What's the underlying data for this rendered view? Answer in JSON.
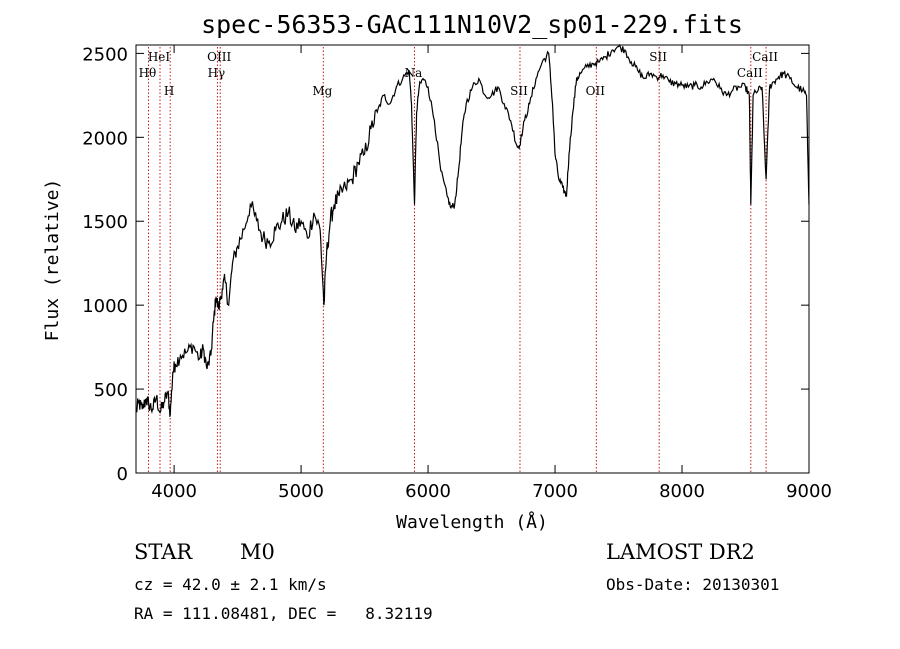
{
  "chart_data": {
    "type": "line",
    "title": "spec-56353-GAC111N10V2_sp01-229.fits",
    "xlabel": "Wavelength (Å)",
    "ylabel": "Flux (relative)",
    "xlim": [
      3700,
      9000
    ],
    "ylim": [
      0,
      2550
    ],
    "xticks": [
      4000,
      5000,
      6000,
      7000,
      8000,
      9000
    ],
    "yticks": [
      0,
      500,
      1000,
      1500,
      2000,
      2500
    ],
    "grid": false,
    "spectral_lines": [
      {
        "name": "HeI",
        "wavelength": 3889,
        "label_row": 1
      },
      {
        "name": "Hθ",
        "wavelength": 3798,
        "label_row": 2
      },
      {
        "name": "H",
        "wavelength": 3969,
        "label_row": 3
      },
      {
        "name": "OIII",
        "wavelength": 4363,
        "label_row": 1
      },
      {
        "name": "Hγ",
        "wavelength": 4341,
        "label_row": 2
      },
      {
        "name": "Mg",
        "wavelength": 5175,
        "label_row": 3
      },
      {
        "name": "Na",
        "wavelength": 5893,
        "label_row": 2
      },
      {
        "name": "SII",
        "wavelength": 6724,
        "label_row": 3
      },
      {
        "name": "OII",
        "wavelength": 7325,
        "label_row": 3
      },
      {
        "name": "SII",
        "wavelength": 7820,
        "label_row": 1
      },
      {
        "name": "CaII",
        "wavelength": 8662,
        "label_row": 1
      },
      {
        "name": "CaII",
        "wavelength": 8542,
        "label_row": 2
      }
    ],
    "series": [
      {
        "x": [
          3700,
          3720,
          3750,
          3780,
          3800,
          3830,
          3860,
          3890,
          3920,
          3950,
          3970,
          3990,
          4010,
          4050,
          4100,
          4150,
          4200,
          4230,
          4260,
          4290,
          4310,
          4330,
          4350,
          4380,
          4400,
          4430,
          4460,
          4500,
          4550,
          4600,
          4650,
          4700,
          4750,
          4800,
          4850,
          4900,
          4950,
          5000,
          5050,
          5100,
          5150,
          5180,
          5200,
          5230,
          5260,
          5300,
          5350,
          5400,
          5450,
          5500,
          5550,
          5600,
          5650,
          5700,
          5750,
          5800,
          5850,
          5870,
          5893,
          5910,
          5930,
          5960,
          6000,
          6050,
          6100,
          6150,
          6180,
          6210,
          6240,
          6270,
          6300,
          6350,
          6400,
          6450,
          6500,
          6550,
          6600,
          6650,
          6700,
          6720,
          6760,
          6800,
          6850,
          6900,
          6950,
          6980,
          7000,
          7030,
          7060,
          7090,
          7110,
          7140,
          7170,
          7200,
          7250,
          7300,
          7350,
          7400,
          7450,
          7500,
          7550,
          7600,
          7650,
          7700,
          7750,
          7800,
          7850,
          7900,
          7950,
          8000,
          8050,
          8100,
          8150,
          8200,
          8250,
          8300,
          8350,
          8400,
          8450,
          8500,
          8530,
          8542,
          8560,
          8600,
          8630,
          8662,
          8690,
          8720,
          8760,
          8800,
          8850,
          8900,
          8950,
          8980,
          9000
        ],
        "y": [
          360,
          420,
          380,
          440,
          410,
          380,
          450,
          360,
          420,
          480,
          350,
          600,
          650,
          700,
          720,
          760,
          680,
          740,
          620,
          700,
          900,
          1050,
          980,
          1100,
          1150,
          1000,
          1250,
          1350,
          1450,
          1600,
          1500,
          1400,
          1380,
          1450,
          1500,
          1550,
          1450,
          1500,
          1400,
          1550,
          1450,
          1000,
          1300,
          1500,
          1600,
          1650,
          1700,
          1750,
          1850,
          1900,
          2050,
          2150,
          2250,
          2200,
          2300,
          2350,
          2400,
          2200,
          1600,
          2150,
          2300,
          2350,
          2300,
          2100,
          1800,
          1650,
          1580,
          1600,
          1800,
          2050,
          2200,
          2300,
          2350,
          2250,
          2250,
          2300,
          2200,
          2100,
          1950,
          1950,
          2100,
          2200,
          2350,
          2450,
          2500,
          2200,
          1900,
          1750,
          1700,
          1650,
          1900,
          2150,
          2350,
          2380,
          2420,
          2440,
          2450,
          2480,
          2520,
          2540,
          2520,
          2450,
          2400,
          2350,
          2380,
          2360,
          2370,
          2330,
          2320,
          2310,
          2300,
          2310,
          2300,
          2330,
          2350,
          2290,
          2250,
          2280,
          2300,
          2300,
          2250,
          1600,
          2250,
          2280,
          2300,
          1750,
          2300,
          2330,
          2360,
          2380,
          2350,
          2300,
          2280,
          2250,
          1600
        ]
      }
    ]
  },
  "info": {
    "object_class": "STAR",
    "subclass": "M0",
    "survey": "LAMOST DR2",
    "cz": "cz = 42.0 ± 2.1 km/s",
    "obs_date": "Obs-Date: 20130301",
    "coords": "RA = 111.08481, DEC =   8.32119"
  }
}
